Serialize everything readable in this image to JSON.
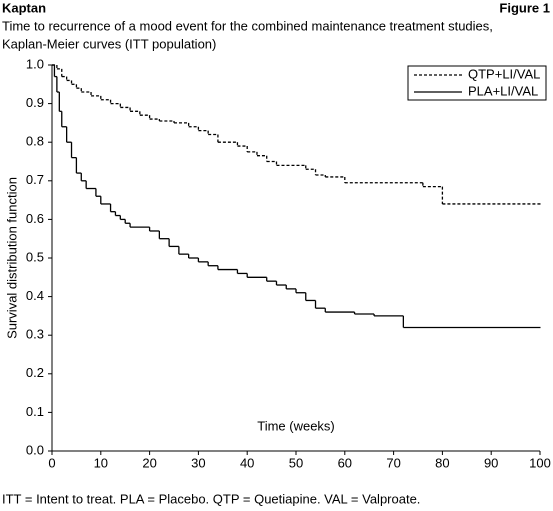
{
  "header": {
    "left": "Kaptan",
    "right": "Figure 1"
  },
  "chart_data": {
    "type": "step",
    "title": [
      "Time to recurrence of a mood event for the combined maintenance treatment studies,",
      "Kaplan-Meier curves (ITT population)"
    ],
    "x_label": "Time (weeks)",
    "y_label": "Survival distribution function",
    "xlim": [
      0,
      100
    ],
    "xticks": [
      0,
      10,
      20,
      30,
      40,
      50,
      60,
      70,
      80,
      90,
      100
    ],
    "ylim": [
      0,
      1
    ],
    "yticks": [
      {
        "value": 0,
        "label": "0.0"
      },
      0.1,
      0.2,
      0.3,
      0.4,
      0.5,
      0.6,
      0.7,
      0.8,
      0.9,
      {
        "value": 1,
        "label": "1.0"
      }
    ],
    "legend": "upper right",
    "series": [
      {
        "name": "QTP+LI/VAL",
        "color": "#000000",
        "dash": "3,2",
        "x": [
          0,
          1,
          2,
          3,
          4,
          5,
          6,
          8,
          10,
          12,
          14,
          16,
          18,
          20,
          22,
          25,
          28,
          30,
          32,
          34,
          38,
          40,
          42,
          44,
          46,
          52,
          54,
          56,
          60,
          76,
          80,
          100
        ],
        "values": [
          1.0,
          0.99,
          0.97,
          0.96,
          0.95,
          0.94,
          0.93,
          0.92,
          0.91,
          0.9,
          0.89,
          0.88,
          0.87,
          0.86,
          0.855,
          0.85,
          0.84,
          0.83,
          0.82,
          0.8,
          0.79,
          0.775,
          0.765,
          0.75,
          0.74,
          0.73,
          0.715,
          0.71,
          0.695,
          0.685,
          0.64,
          0.64
        ]
      },
      {
        "name": "PLA+LI/VAL",
        "color": "#000000",
        "dash": "none",
        "x": [
          0,
          0.5,
          1,
          1.5,
          2,
          3,
          4,
          5,
          6,
          7,
          9,
          10,
          12,
          13,
          14,
          15,
          16,
          20,
          22,
          24,
          26,
          28,
          30,
          32,
          34,
          38,
          40,
          44,
          46,
          48,
          50,
          52,
          54,
          56,
          62,
          66,
          72,
          100
        ],
        "values": [
          1.0,
          0.97,
          0.93,
          0.88,
          0.84,
          0.8,
          0.76,
          0.72,
          0.7,
          0.68,
          0.66,
          0.64,
          0.62,
          0.61,
          0.6,
          0.59,
          0.58,
          0.57,
          0.55,
          0.53,
          0.51,
          0.5,
          0.49,
          0.48,
          0.47,
          0.46,
          0.45,
          0.44,
          0.43,
          0.42,
          0.41,
          0.39,
          0.37,
          0.36,
          0.355,
          0.35,
          0.32,
          0.32
        ]
      }
    ]
  },
  "footnote": "ITT = Intent to treat. PLA = Placebo. QTP = Quetiapine. VAL = Valproate."
}
